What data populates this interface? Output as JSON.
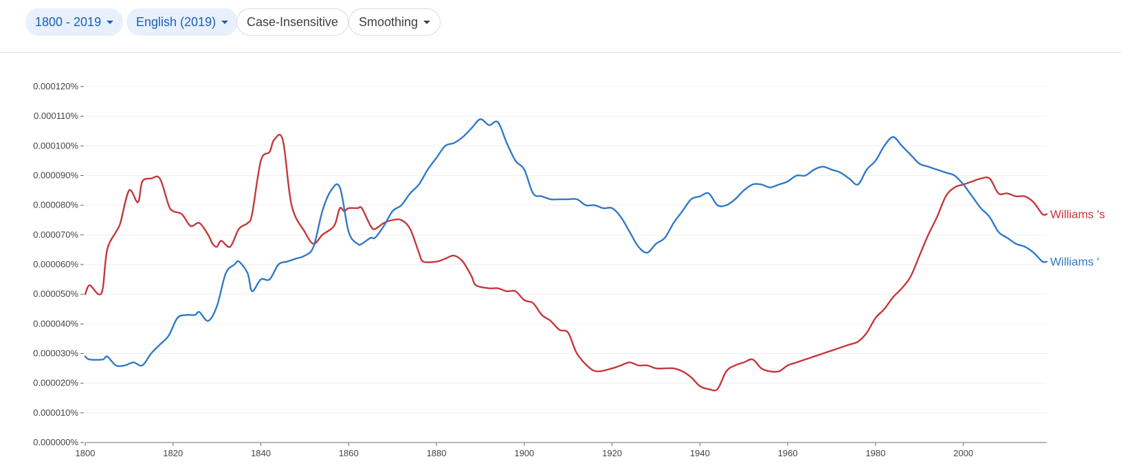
{
  "toolbar": {
    "year_range": "1800 - 2019",
    "corpus": "English (2019)",
    "case_option": "Case-Insensitive",
    "smoothing": "Smoothing"
  },
  "colors": {
    "williams_s": "#c4373a",
    "williams_apostrophe": "#2f79c6",
    "grid": "#eeeeee",
    "axis": "#9e9e9e"
  },
  "chart_data": {
    "type": "line",
    "title": "",
    "xlabel": "",
    "ylabel": "",
    "xlim": [
      1800,
      2019
    ],
    "ylim": [
      0,
      0.00012
    ],
    "x_ticks": [
      1800,
      1820,
      1840,
      1860,
      1880,
      1900,
      1920,
      1940,
      1960,
      1980,
      2000
    ],
    "y_ticks": [
      {
        "value": 0.00012,
        "label": "0.000120%"
      },
      {
        "value": 0.00011,
        "label": "0.000110%"
      },
      {
        "value": 0.0001,
        "label": "0.000100%"
      },
      {
        "value": 9e-05,
        "label": "0.000090%"
      },
      {
        "value": 8e-05,
        "label": "0.000080%"
      },
      {
        "value": 7e-05,
        "label": "0.000070%"
      },
      {
        "value": 6e-05,
        "label": "0.000060%"
      },
      {
        "value": 5e-05,
        "label": "0.000050%"
      },
      {
        "value": 4e-05,
        "label": "0.000040%"
      },
      {
        "value": 3e-05,
        "label": "0.000030%"
      },
      {
        "value": 2e-05,
        "label": "0.000020%"
      },
      {
        "value": 1e-05,
        "label": "0.000010%"
      },
      {
        "value": 0,
        "label": "0.000000%"
      }
    ],
    "series": [
      {
        "name": "Williams 's",
        "color": "#c4373a",
        "points": [
          [
            1800,
            5e-05
          ],
          [
            1801,
            5.3e-05
          ],
          [
            1803,
            5e-05
          ],
          [
            1804,
            5.2e-05
          ],
          [
            1805,
            6.5e-05
          ],
          [
            1807,
            7.1e-05
          ],
          [
            1808,
            7.4e-05
          ],
          [
            1810,
            8.5e-05
          ],
          [
            1812,
            8.1e-05
          ],
          [
            1813,
            8.8e-05
          ],
          [
            1815,
            8.9e-05
          ],
          [
            1817,
            8.9e-05
          ],
          [
            1819,
            8e-05
          ],
          [
            1820,
            7.8e-05
          ],
          [
            1822,
            7.7e-05
          ],
          [
            1824,
            7.3e-05
          ],
          [
            1826,
            7.4e-05
          ],
          [
            1828,
            7e-05
          ],
          [
            1829,
            6.7e-05
          ],
          [
            1830,
            6.6e-05
          ],
          [
            1831,
            6.8e-05
          ],
          [
            1833,
            6.6e-05
          ],
          [
            1835,
            7.2e-05
          ],
          [
            1837,
            7.4e-05
          ],
          [
            1838,
            7.7e-05
          ],
          [
            1840,
            9.5e-05
          ],
          [
            1842,
            9.8e-05
          ],
          [
            1843,
            0.000102
          ],
          [
            1845,
            0.000102
          ],
          [
            1847,
            8e-05
          ],
          [
            1850,
            7.1e-05
          ],
          [
            1852,
            6.7e-05
          ],
          [
            1854,
            7e-05
          ],
          [
            1856,
            7.2e-05
          ],
          [
            1857,
            7.4e-05
          ],
          [
            1858,
            7.9e-05
          ],
          [
            1859,
            7.8e-05
          ],
          [
            1860,
            7.9e-05
          ],
          [
            1862,
            7.9e-05
          ],
          [
            1863,
            7.9e-05
          ],
          [
            1865,
            7.3e-05
          ],
          [
            1866,
            7.2e-05
          ],
          [
            1868,
            7.4e-05
          ],
          [
            1870,
            7.5e-05
          ],
          [
            1872,
            7.5e-05
          ],
          [
            1874,
            7.2e-05
          ],
          [
            1876,
            6.4e-05
          ],
          [
            1877,
            6.1e-05
          ],
          [
            1880,
            6.1e-05
          ],
          [
            1882,
            6.2e-05
          ],
          [
            1884,
            6.3e-05
          ],
          [
            1886,
            6.1e-05
          ],
          [
            1888,
            5.6e-05
          ],
          [
            1889,
            5.3e-05
          ],
          [
            1892,
            5.2e-05
          ],
          [
            1894,
            5.2e-05
          ],
          [
            1896,
            5.1e-05
          ],
          [
            1898,
            5.1e-05
          ],
          [
            1900,
            4.8e-05
          ],
          [
            1902,
            4.7e-05
          ],
          [
            1904,
            4.3e-05
          ],
          [
            1906,
            4.1e-05
          ],
          [
            1908,
            3.8e-05
          ],
          [
            1910,
            3.7e-05
          ],
          [
            1912,
            3e-05
          ],
          [
            1915,
            2.5e-05
          ],
          [
            1917,
            2.4e-05
          ],
          [
            1920,
            2.5e-05
          ],
          [
            1922,
            2.6e-05
          ],
          [
            1924,
            2.7e-05
          ],
          [
            1926,
            2.6e-05
          ],
          [
            1928,
            2.6e-05
          ],
          [
            1930,
            2.5e-05
          ],
          [
            1932,
            2.5e-05
          ],
          [
            1934,
            2.5e-05
          ],
          [
            1936,
            2.4e-05
          ],
          [
            1938,
            2.2e-05
          ],
          [
            1940,
            1.9e-05
          ],
          [
            1942,
            1.8e-05
          ],
          [
            1944,
            1.8e-05
          ],
          [
            1946,
            2.4e-05
          ],
          [
            1948,
            2.6e-05
          ],
          [
            1950,
            2.7e-05
          ],
          [
            1952,
            2.8e-05
          ],
          [
            1954,
            2.5e-05
          ],
          [
            1956,
            2.4e-05
          ],
          [
            1958,
            2.4e-05
          ],
          [
            1960,
            2.6e-05
          ],
          [
            1962,
            2.7e-05
          ],
          [
            1964,
            2.8e-05
          ],
          [
            1966,
            2.9e-05
          ],
          [
            1968,
            3e-05
          ],
          [
            1970,
            3.1e-05
          ],
          [
            1972,
            3.2e-05
          ],
          [
            1974,
            3.3e-05
          ],
          [
            1976,
            3.4e-05
          ],
          [
            1978,
            3.7e-05
          ],
          [
            1980,
            4.2e-05
          ],
          [
            1982,
            4.5e-05
          ],
          [
            1984,
            4.9e-05
          ],
          [
            1986,
            5.2e-05
          ],
          [
            1988,
            5.6e-05
          ],
          [
            1990,
            6.3e-05
          ],
          [
            1992,
            7e-05
          ],
          [
            1994,
            7.6e-05
          ],
          [
            1996,
            8.3e-05
          ],
          [
            1998,
            8.6e-05
          ],
          [
            2000,
            8.7e-05
          ],
          [
            2002,
            8.8e-05
          ],
          [
            2004,
            8.9e-05
          ],
          [
            2006,
            8.9e-05
          ],
          [
            2008,
            8.4e-05
          ],
          [
            2010,
            8.4e-05
          ],
          [
            2012,
            8.3e-05
          ],
          [
            2014,
            8.3e-05
          ],
          [
            2016,
            8.1e-05
          ],
          [
            2018,
            7.7e-05
          ],
          [
            2019,
            7.7e-05
          ]
        ]
      },
      {
        "name": "Williams '",
        "color": "#2f79c6",
        "points": [
          [
            1800,
            2.9e-05
          ],
          [
            1801,
            2.8e-05
          ],
          [
            1804,
            2.8e-05
          ],
          [
            1805,
            2.9e-05
          ],
          [
            1807,
            2.6e-05
          ],
          [
            1809,
            2.6e-05
          ],
          [
            1811,
            2.7e-05
          ],
          [
            1813,
            2.6e-05
          ],
          [
            1815,
            3e-05
          ],
          [
            1817,
            3.3e-05
          ],
          [
            1819,
            3.6e-05
          ],
          [
            1821,
            4.2e-05
          ],
          [
            1823,
            4.3e-05
          ],
          [
            1825,
            4.3e-05
          ],
          [
            1826,
            4.4e-05
          ],
          [
            1828,
            4.1e-05
          ],
          [
            1830,
            4.6e-05
          ],
          [
            1832,
            5.7e-05
          ],
          [
            1834,
            6e-05
          ],
          [
            1835,
            6.1e-05
          ],
          [
            1837,
            5.7e-05
          ],
          [
            1838,
            5.1e-05
          ],
          [
            1840,
            5.5e-05
          ],
          [
            1842,
            5.5e-05
          ],
          [
            1844,
            6e-05
          ],
          [
            1846,
            6.1e-05
          ],
          [
            1848,
            6.2e-05
          ],
          [
            1850,
            6.3e-05
          ],
          [
            1852,
            6.6e-05
          ],
          [
            1854,
            7.8e-05
          ],
          [
            1856,
            8.5e-05
          ],
          [
            1858,
            8.6e-05
          ],
          [
            1860,
            7.1e-05
          ],
          [
            1862,
            6.7e-05
          ],
          [
            1863,
            6.7e-05
          ],
          [
            1865,
            6.9e-05
          ],
          [
            1866,
            6.9e-05
          ],
          [
            1868,
            7.3e-05
          ],
          [
            1870,
            7.8e-05
          ],
          [
            1872,
            8e-05
          ],
          [
            1874,
            8.4e-05
          ],
          [
            1876,
            8.7e-05
          ],
          [
            1878,
            9.2e-05
          ],
          [
            1880,
            9.6e-05
          ],
          [
            1882,
            0.0001
          ],
          [
            1884,
            0.000101
          ],
          [
            1886,
            0.000103
          ],
          [
            1888,
            0.000106
          ],
          [
            1890,
            0.000109
          ],
          [
            1892,
            0.000107
          ],
          [
            1894,
            0.000108
          ],
          [
            1896,
            0.000101
          ],
          [
            1898,
            9.5e-05
          ],
          [
            1900,
            9.2e-05
          ],
          [
            1902,
            8.4e-05
          ],
          [
            1904,
            8.3e-05
          ],
          [
            1906,
            8.2e-05
          ],
          [
            1908,
            8.2e-05
          ],
          [
            1910,
            8.2e-05
          ],
          [
            1912,
            8.2e-05
          ],
          [
            1914,
            8e-05
          ],
          [
            1916,
            8e-05
          ],
          [
            1918,
            7.9e-05
          ],
          [
            1920,
            7.9e-05
          ],
          [
            1922,
            7.6e-05
          ],
          [
            1924,
            7.1e-05
          ],
          [
            1926,
            6.6e-05
          ],
          [
            1928,
            6.4e-05
          ],
          [
            1930,
            6.7e-05
          ],
          [
            1932,
            6.9e-05
          ],
          [
            1934,
            7.4e-05
          ],
          [
            1936,
            7.8e-05
          ],
          [
            1938,
            8.2e-05
          ],
          [
            1940,
            8.3e-05
          ],
          [
            1942,
            8.4e-05
          ],
          [
            1944,
            8e-05
          ],
          [
            1946,
            8e-05
          ],
          [
            1948,
            8.2e-05
          ],
          [
            1950,
            8.5e-05
          ],
          [
            1952,
            8.7e-05
          ],
          [
            1954,
            8.7e-05
          ],
          [
            1956,
            8.6e-05
          ],
          [
            1958,
            8.7e-05
          ],
          [
            1960,
            8.8e-05
          ],
          [
            1962,
            9e-05
          ],
          [
            1964,
            9e-05
          ],
          [
            1966,
            9.2e-05
          ],
          [
            1968,
            9.3e-05
          ],
          [
            1970,
            9.2e-05
          ],
          [
            1972,
            9.1e-05
          ],
          [
            1974,
            8.9e-05
          ],
          [
            1976,
            8.7e-05
          ],
          [
            1978,
            9.2e-05
          ],
          [
            1980,
            9.5e-05
          ],
          [
            1982,
            0.0001
          ],
          [
            1984,
            0.000103
          ],
          [
            1986,
            0.0001
          ],
          [
            1988,
            9.7e-05
          ],
          [
            1990,
            9.4e-05
          ],
          [
            1992,
            9.3e-05
          ],
          [
            1994,
            9.2e-05
          ],
          [
            1996,
            9.1e-05
          ],
          [
            1998,
            9e-05
          ],
          [
            2000,
            8.7e-05
          ],
          [
            2002,
            8.3e-05
          ],
          [
            2004,
            7.9e-05
          ],
          [
            2006,
            7.6e-05
          ],
          [
            2008,
            7.1e-05
          ],
          [
            2010,
            6.9e-05
          ],
          [
            2012,
            6.7e-05
          ],
          [
            2014,
            6.6e-05
          ],
          [
            2016,
            6.4e-05
          ],
          [
            2018,
            6.1e-05
          ],
          [
            2019,
            6.1e-05
          ]
        ]
      }
    ]
  }
}
